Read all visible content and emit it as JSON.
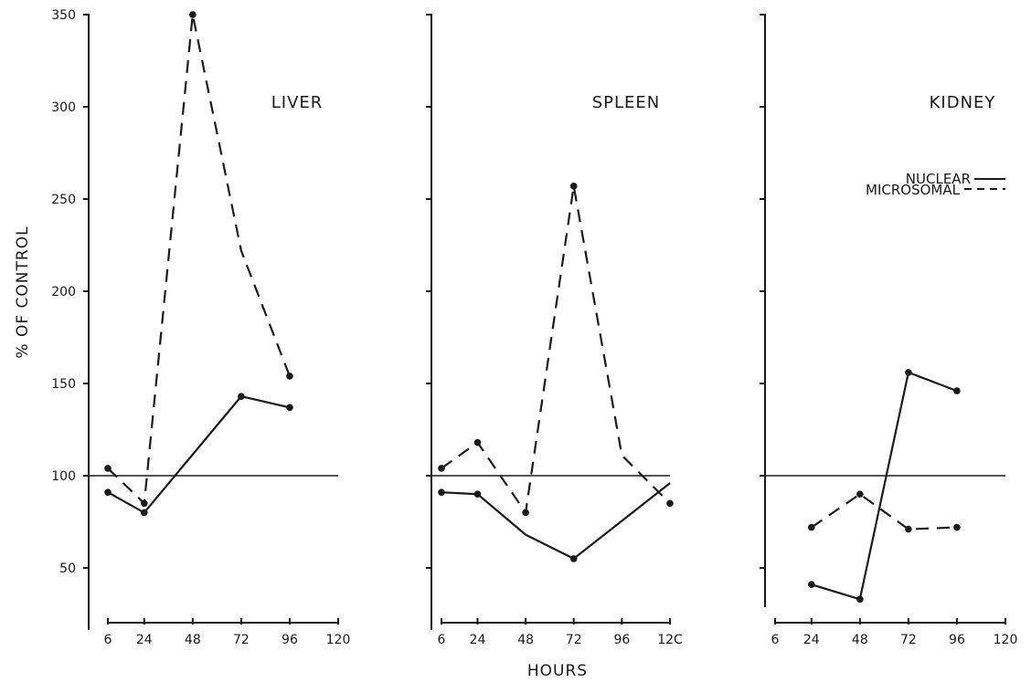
{
  "chart_data": {
    "type": "line",
    "ylabel": "% OF CONTROL",
    "xlabel": "HOURS",
    "y_ticks": [
      "350",
      "300",
      "250",
      "200",
      "150",
      "100",
      "50"
    ],
    "legend": [
      {
        "label": "NUCLEAR",
        "style": "solid"
      },
      {
        "label": "MICROSOMAL",
        "style": "dashed"
      }
    ],
    "reference_line": 100,
    "ylim": [
      35,
      350
    ],
    "xlim": [
      6,
      120
    ],
    "x_tick_values": [
      6,
      24,
      48,
      72,
      96,
      120
    ],
    "panels": [
      {
        "title": "LIVER",
        "x_tick_labels": [
          "6",
          "24",
          "48",
          "72",
          "96",
          "120"
        ],
        "series": [
          {
            "name": "NUCLEAR",
            "style": "solid",
            "points": [
              [
                6,
                91
              ],
              [
                24,
                80
              ],
              [
                72,
                143
              ],
              [
                96,
                137
              ]
            ],
            "markers": [
              true,
              true,
              true,
              true
            ]
          },
          {
            "name": "MICROSOMAL",
            "style": "dashed",
            "points": [
              [
                6,
                104
              ],
              [
                24,
                85
              ],
              [
                48,
                350
              ],
              [
                72,
                222
              ],
              [
                96,
                154
              ]
            ],
            "markers": [
              true,
              true,
              true,
              false,
              true
            ]
          }
        ]
      },
      {
        "title": "SPLEEN",
        "x_tick_labels": [
          "6",
          "24",
          "48",
          "72",
          "96",
          "12C"
        ],
        "series": [
          {
            "name": "NUCLEAR",
            "style": "solid",
            "points": [
              [
                6,
                91
              ],
              [
                24,
                90
              ],
              [
                48,
                68
              ],
              [
                72,
                55
              ],
              [
                120,
                96
              ]
            ],
            "markers": [
              true,
              true,
              false,
              true,
              false
            ]
          },
          {
            "name": "MICROSOMAL",
            "style": "dashed",
            "points": [
              [
                6,
                104
              ],
              [
                24,
                118
              ],
              [
                48,
                80
              ],
              [
                72,
                257
              ],
              [
                96,
                111
              ],
              [
                120,
                85
              ]
            ],
            "markers": [
              true,
              true,
              true,
              true,
              false,
              true
            ]
          }
        ]
      },
      {
        "title": "KIDNEY",
        "x_tick_labels": [
          "6",
          "24",
          "48",
          "72",
          "96",
          "120"
        ],
        "series": [
          {
            "name": "NUCLEAR",
            "style": "solid",
            "points": [
              [
                24,
                41
              ],
              [
                48,
                33
              ],
              [
                72,
                156
              ],
              [
                96,
                146
              ]
            ],
            "markers": [
              true,
              true,
              true,
              true
            ]
          },
          {
            "name": "MICROSOMAL",
            "style": "dashed",
            "points": [
              [
                24,
                72
              ],
              [
                48,
                90
              ],
              [
                72,
                71
              ],
              [
                96,
                72
              ]
            ],
            "markers": [
              true,
              true,
              true,
              true
            ]
          }
        ]
      }
    ]
  }
}
